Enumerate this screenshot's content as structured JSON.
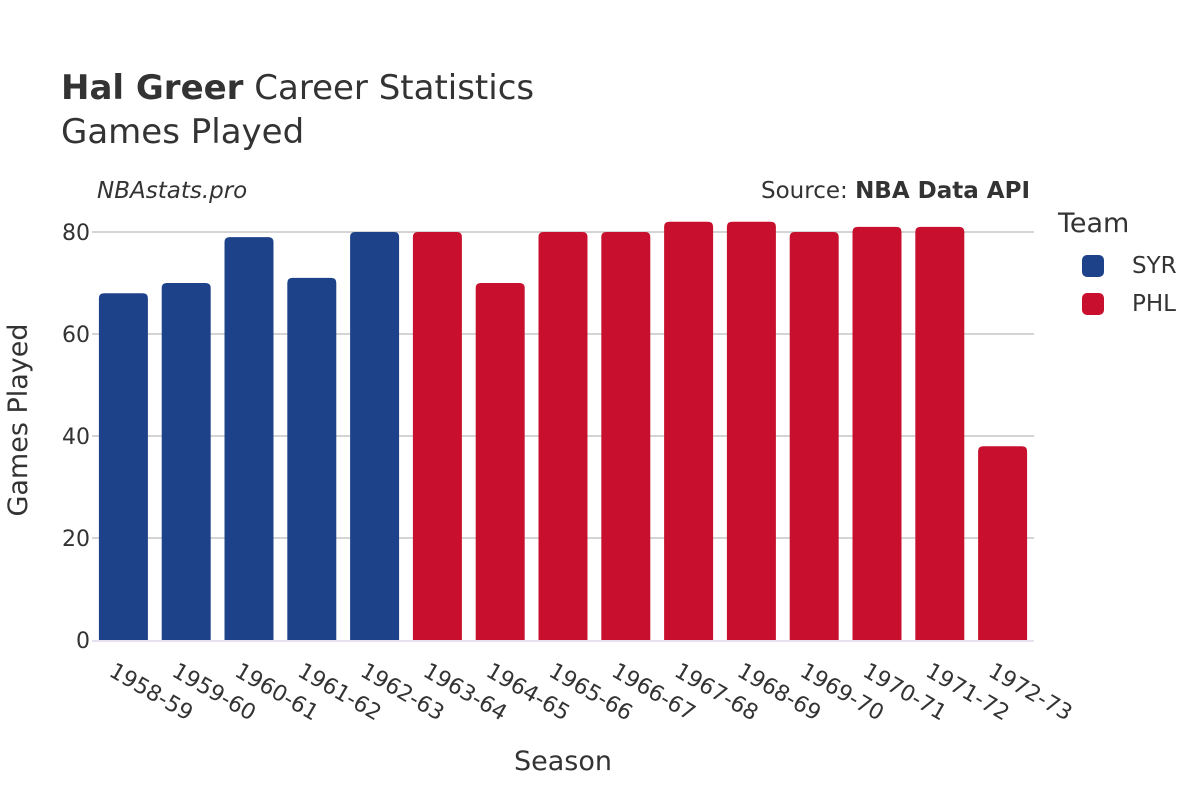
{
  "title": {
    "player": "Hal Greer",
    "rest": " Career Statistics",
    "subtitle": "Games Played"
  },
  "site": "NBAstats.pro",
  "source": {
    "prefix": "Source: ",
    "name": "NBA Data API"
  },
  "legend": {
    "title": "Team",
    "items": [
      {
        "label": "SYR",
        "color": "#1d428a"
      },
      {
        "label": "PHL",
        "color": "#c8102e"
      }
    ]
  },
  "chart_data": {
    "type": "bar",
    "xlabel": "Season",
    "ylabel": "Games Played",
    "ylim": [
      0,
      82
    ],
    "yticks": [
      0,
      20,
      40,
      60,
      80
    ],
    "grid": true,
    "legend_position": "right",
    "categories": [
      "1958-59",
      "1959-60",
      "1960-61",
      "1961-62",
      "1962-63",
      "1963-64",
      "1964-65",
      "1965-66",
      "1966-67",
      "1967-68",
      "1968-69",
      "1969-70",
      "1970-71",
      "1971-72",
      "1972-73"
    ],
    "values": [
      68,
      70,
      79,
      71,
      80,
      80,
      70,
      80,
      80,
      82,
      82,
      80,
      81,
      81,
      38
    ],
    "teams": [
      "SYR",
      "SYR",
      "SYR",
      "SYR",
      "SYR",
      "PHL",
      "PHL",
      "PHL",
      "PHL",
      "PHL",
      "PHL",
      "PHL",
      "PHL",
      "PHL",
      "PHL"
    ]
  }
}
